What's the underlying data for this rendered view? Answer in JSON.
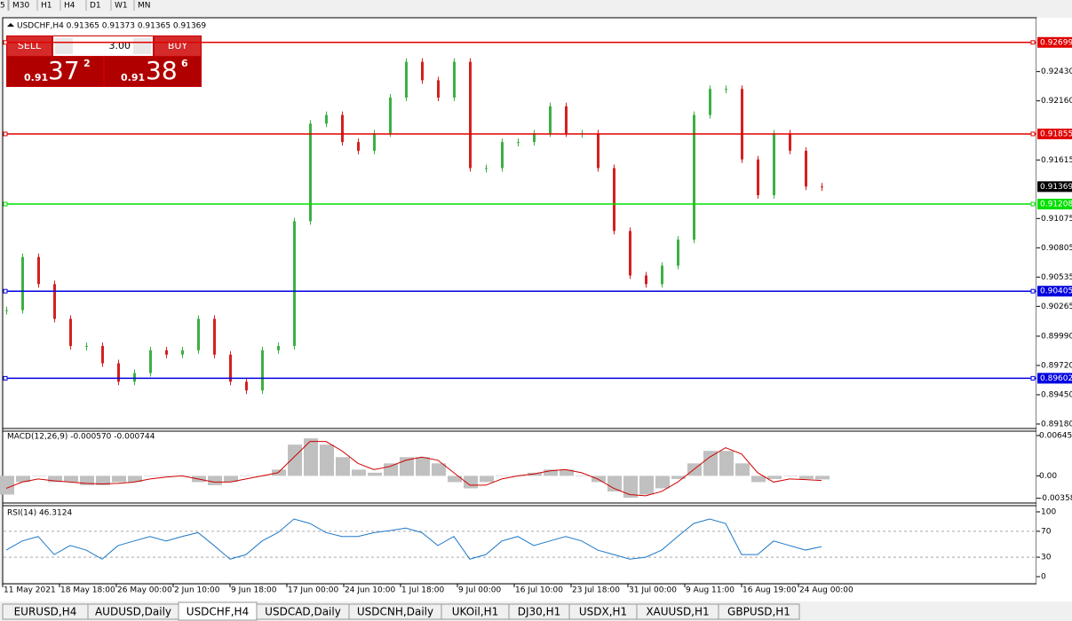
{
  "toolbar": {
    "timeframes": [
      "5",
      "M30",
      "H1",
      "H4",
      "D1",
      "W1",
      "MN"
    ]
  },
  "chart": {
    "header": "USDCHF,H4  0.91365 0.91373 0.91365 0.91369",
    "trade_panel": {
      "sell": "SELL",
      "buy": "BUY",
      "volume": "3.00",
      "bid": {
        "big": "0.91",
        "pips": "37",
        "frac": "2"
      },
      "ask": {
        "big": "0.91",
        "pips": "38",
        "frac": "6"
      }
    },
    "main": {
      "ylim": [
        0.89147,
        0.9291
      ],
      "yticks": [
        {
          "value": 0.9243,
          "label": "0.92430"
        },
        {
          "value": 0.9216,
          "label": "0.92160"
        },
        {
          "value": 0.91615,
          "label": "0.91615"
        },
        {
          "value": 0.91075,
          "label": "0.91075"
        },
        {
          "value": 0.90805,
          "label": "0.90805"
        },
        {
          "value": 0.90535,
          "label": "0.90535"
        },
        {
          "value": 0.90265,
          "label": "0.90265"
        },
        {
          "value": 0.8999,
          "label": "0.89990"
        },
        {
          "value": 0.8972,
          "label": "0.89720"
        },
        {
          "value": 0.8945,
          "label": "0.89450"
        },
        {
          "value": 0.8918,
          "label": "0.89180"
        }
      ],
      "levels": [
        {
          "value": 0.92699,
          "color": "#e00000"
        },
        {
          "value": 0.91855,
          "color": "#e00000"
        },
        {
          "value": 0.91208,
          "color": "#00e000"
        },
        {
          "value": 0.90405,
          "color": "#0000e0"
        },
        {
          "value": 0.89602,
          "color": "#0000e0"
        }
      ],
      "current_price": 0.91369,
      "up_color": "#3cb043",
      "down_color": "#d42020",
      "closes": [
        0.9023,
        0.9072,
        0.9047,
        0.9015,
        0.899,
        0.899,
        0.8974,
        0.8957,
        0.8965,
        0.8986,
        0.8982,
        0.8986,
        0.9015,
        0.8982,
        0.8957,
        0.8949,
        0.8986,
        0.899,
        0.9105,
        0.9195,
        0.9203,
        0.9178,
        0.917,
        0.9186,
        0.9219,
        0.9252,
        0.9235,
        0.9219,
        0.9252,
        0.9154,
        0.9154,
        0.9178,
        0.9178,
        0.9186,
        0.9211,
        0.9186,
        0.9186,
        0.9154,
        0.9096,
        0.9055,
        0.9047,
        0.9064,
        0.9088,
        0.9203,
        0.9227,
        0.9227,
        0.9162,
        0.9129,
        0.9186,
        0.917,
        0.9137,
        0.91369
      ]
    },
    "macd": {
      "title": "MACD(12,26,9) -0.000570 -0.000744",
      "ylim": [
        -0.00421,
        0.006876
      ],
      "yticks": [
        {
          "value": 0.006455,
          "label": "0.006455"
        },
        {
          "value": 0,
          "label": "0.00"
        },
        {
          "value": -0.003589,
          "label": "-0.003589"
        }
      ],
      "hist_color": "#c0c0c0",
      "signal_color": "#d00000",
      "histogram": [
        -0.003,
        -0.001,
        0,
        -0.001,
        -0.001,
        -0.0015,
        -0.0015,
        -0.001,
        -0.001,
        0,
        0,
        0,
        -0.001,
        -0.0015,
        -0.001,
        0,
        0,
        0.001,
        0.005,
        0.006,
        0.005,
        0.003,
        0.001,
        0.0005,
        0.002,
        0.003,
        0.003,
        0.002,
        -0.001,
        -0.002,
        -0.001,
        0,
        0,
        0.0005,
        0.001,
        0.001,
        0,
        -0.001,
        -0.0025,
        -0.0035,
        -0.003,
        -0.002,
        -0.0005,
        0.002,
        0.004,
        0.004,
        0.002,
        -0.001,
        -0.0005,
        0,
        -0.0005,
        -0.00057
      ],
      "signal": [
        -0.002,
        -0.001,
        -0.0005,
        -0.0008,
        -0.001,
        -0.0012,
        -0.0013,
        -0.0012,
        -0.001,
        -0.0005,
        -0.0002,
        0,
        -0.0005,
        -0.001,
        -0.001,
        -0.0005,
        0,
        0.0005,
        0.003,
        0.0055,
        0.0055,
        0.004,
        0.002,
        0.001,
        0.0015,
        0.0025,
        0.003,
        0.0025,
        0.0005,
        -0.0015,
        -0.0015,
        -0.0005,
        0,
        0.0003,
        0.0008,
        0.001,
        0.0005,
        -0.0005,
        -0.002,
        -0.003,
        -0.0032,
        -0.0025,
        -0.001,
        0.001,
        0.003,
        0.0045,
        0.0035,
        0.0005,
        -0.001,
        -0.0005,
        -0.0006,
        -0.000744
      ]
    },
    "rsi": {
      "title": "RSI(14) 46.3124",
      "ylim": [
        -9.6,
        106.8
      ],
      "yticks": [
        100,
        70,
        30,
        0
      ],
      "levels": [
        70,
        30
      ],
      "color": "#1e78c8",
      "values": [
        41,
        55,
        62,
        34,
        48,
        41,
        27,
        48,
        55,
        62,
        55,
        62,
        68,
        48,
        27,
        34,
        55,
        68,
        89,
        82,
        68,
        62,
        62,
        68,
        71,
        75,
        68,
        48,
        62,
        27,
        34,
        55,
        62,
        48,
        55,
        62,
        55,
        41,
        34,
        27,
        30,
        41,
        62,
        82,
        89,
        82,
        34,
        34,
        55,
        48,
        41,
        46.3124
      ]
    },
    "dates": [
      "11 May 2021",
      "18 May 18:00",
      "26 May 00:00",
      "2 Jun 10:00",
      "9 Jun 18:00",
      "17 Jun 00:00",
      "24 Jun 10:00",
      "1 Jul 18:00",
      "9 Jul 00:00",
      "16 Jul 10:00",
      "23 Jul 18:00",
      "31 Jul 00:00",
      "9 Aug 11:00",
      "16 Aug 19:00",
      "24 Aug 00:00"
    ]
  },
  "tabs": {
    "items": [
      "EURUSD,H4",
      "AUDUSD,Daily",
      "USDCHF,H4",
      "USDCAD,Daily",
      "USDCNH,Daily",
      "UKOil,H1",
      "DJ30,H1",
      "USDX,H1",
      "XAUUSD,H1",
      "GBPUSD,H1"
    ],
    "active": "USDCHF,H4"
  }
}
